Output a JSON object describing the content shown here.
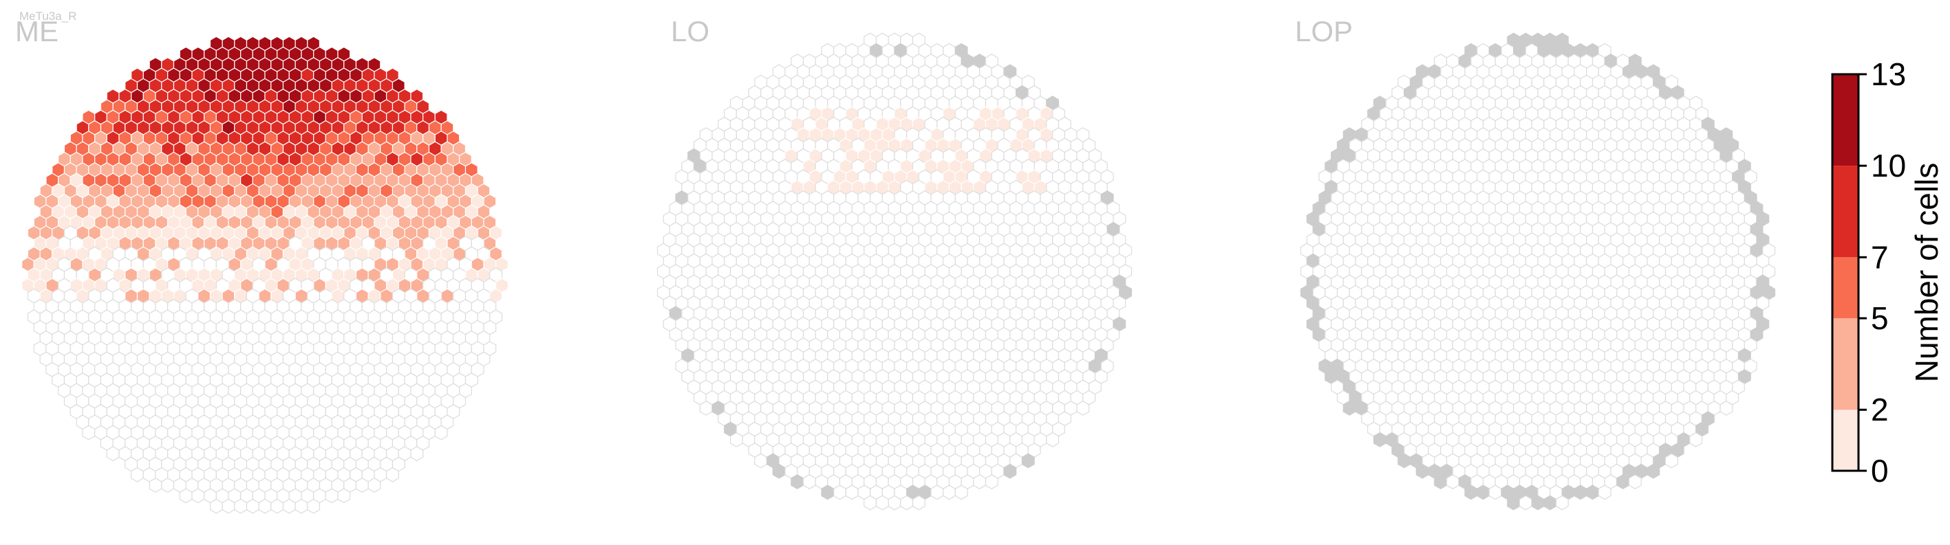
{
  "figure": {
    "cell_type_label": "MeTu3a_R",
    "panel_titles": [
      "ME",
      "LO",
      "LOP"
    ]
  },
  "chart_data": {
    "type": "heatmap",
    "subtype": "hexagonal columnar map",
    "panels": [
      {
        "name": "ME",
        "description_of_values": "Number of cells per column; high counts in dorsal (upper) half, near zero in ventral half",
        "high_region": "upper",
        "peak_value": 13
      },
      {
        "name": "LO",
        "description_of_values": "Mostly zero; sparse low values (1-2) in an upper band; gray hexes on the rim mark columns outside range",
        "high_region": "upper band",
        "peak_value": 2
      },
      {
        "name": "LOP",
        "description_of_values": "All columns zero; gray hexes around the rim",
        "high_region": "none",
        "peak_value": 0
      }
    ],
    "colorbar": {
      "title": "Number of cells",
      "ticks": [
        0,
        2,
        5,
        7,
        10,
        13
      ],
      "bins": [
        {
          "from": 0,
          "to": 2,
          "color": "#fde9df"
        },
        {
          "from": 2,
          "to": 5,
          "color": "#fbb098"
        },
        {
          "from": 5,
          "to": 7,
          "color": "#f86c4f"
        },
        {
          "from": 7,
          "to": 10,
          "color": "#dc2b25"
        },
        {
          "from": 10,
          "to": 13,
          "color": "#a60d16"
        }
      ],
      "range": [
        0,
        13
      ]
    },
    "colors": {
      "empty_fill": "#ffffff",
      "empty_stroke": "#dcdcdc",
      "outside_fill": "#cccccc"
    }
  }
}
